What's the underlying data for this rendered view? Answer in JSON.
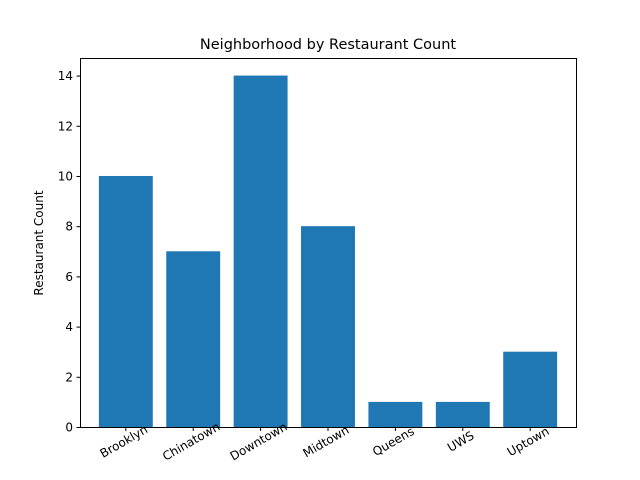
{
  "chart_data": {
    "type": "bar",
    "title": "Neighborhood by Restaurant Count",
    "xlabel": "",
    "ylabel": "Restaurant Count",
    "categories": [
      "Brooklyn",
      "Chinatown",
      "Downtown",
      "Midtown",
      "Queens",
      "UWS",
      "Uptown"
    ],
    "values": [
      10,
      7,
      14,
      8,
      1,
      1,
      3
    ],
    "ylim": [
      0,
      14.7
    ],
    "yticks": [
      0,
      2,
      4,
      6,
      8,
      10,
      12,
      14
    ],
    "grid": false,
    "legend": "none",
    "bar_color": "#1f77b4"
  }
}
